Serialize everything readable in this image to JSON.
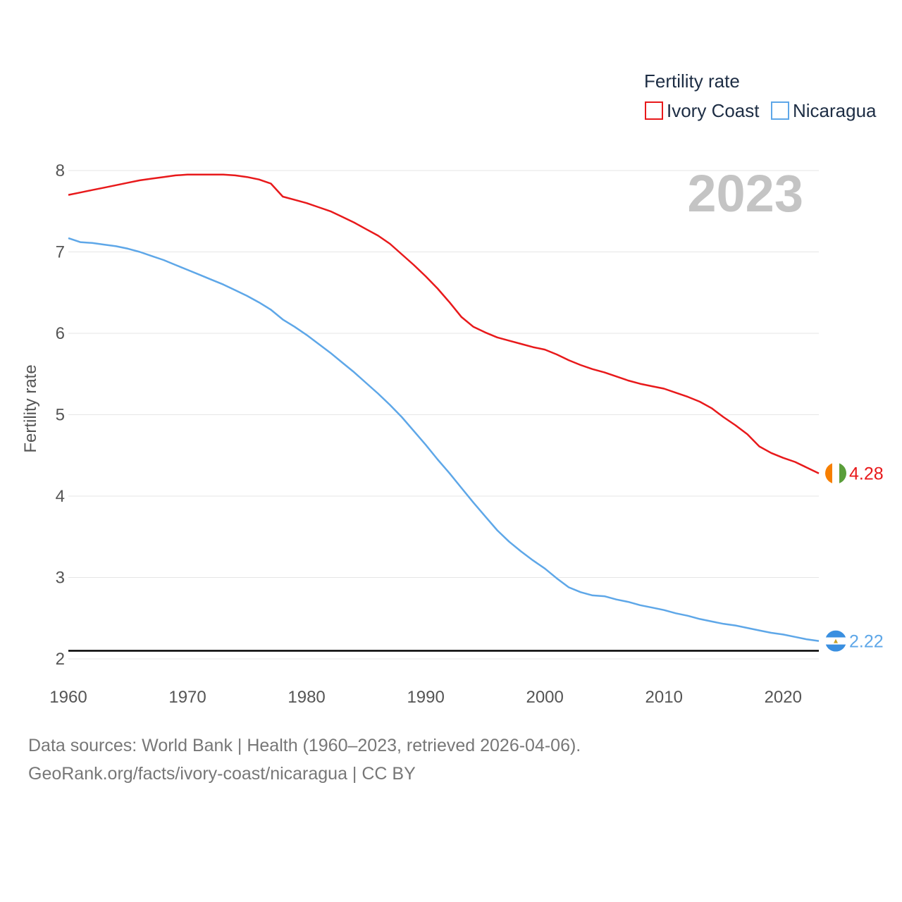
{
  "chart_data": {
    "type": "line",
    "title": "Fertility rate",
    "year_label": "2023",
    "xlabel": "",
    "ylabel": "Fertility rate",
    "xlim": [
      1960,
      2023
    ],
    "ylim": [
      2,
      8
    ],
    "x_ticks": [
      1960,
      1970,
      1980,
      1990,
      2000,
      2010,
      2020
    ],
    "y_ticks": [
      2,
      3,
      4,
      5,
      6,
      7,
      8
    ],
    "reference_line": 2.1,
    "grid": true,
    "legend_position": "top-right",
    "x": [
      1960,
      1961,
      1962,
      1963,
      1964,
      1965,
      1966,
      1967,
      1968,
      1969,
      1970,
      1971,
      1972,
      1973,
      1974,
      1975,
      1976,
      1977,
      1978,
      1979,
      1980,
      1981,
      1982,
      1983,
      1984,
      1985,
      1986,
      1987,
      1988,
      1989,
      1990,
      1991,
      1992,
      1993,
      1994,
      1995,
      1996,
      1997,
      1998,
      1999,
      2000,
      2001,
      2002,
      2003,
      2004,
      2005,
      2006,
      2007,
      2008,
      2009,
      2010,
      2011,
      2012,
      2013,
      2014,
      2015,
      2016,
      2017,
      2018,
      2019,
      2020,
      2021,
      2022,
      2023
    ],
    "series": [
      {
        "name": "Ivory Coast",
        "color": "#e8191b",
        "end_label": "4.28",
        "flag": "ivory-coast-flag",
        "values": [
          7.7,
          7.73,
          7.76,
          7.79,
          7.82,
          7.85,
          7.88,
          7.9,
          7.92,
          7.94,
          7.95,
          7.95,
          7.95,
          7.95,
          7.94,
          7.92,
          7.89,
          7.84,
          7.68,
          7.64,
          7.6,
          7.55,
          7.5,
          7.43,
          7.36,
          7.28,
          7.2,
          7.1,
          6.97,
          6.84,
          6.7,
          6.55,
          6.38,
          6.2,
          6.08,
          6.01,
          5.95,
          5.91,
          5.87,
          5.83,
          5.8,
          5.74,
          5.67,
          5.61,
          5.56,
          5.52,
          5.47,
          5.42,
          5.38,
          5.35,
          5.32,
          5.27,
          5.22,
          5.16,
          5.08,
          4.97,
          4.87,
          4.76,
          4.61,
          4.53,
          4.47,
          4.42,
          4.35,
          4.28
        ]
      },
      {
        "name": "Nicaragua",
        "color": "#5ea7e8",
        "end_label": "2.22",
        "flag": "nicaragua-flag",
        "values": [
          7.17,
          7.12,
          7.11,
          7.09,
          7.07,
          7.04,
          7.0,
          6.95,
          6.9,
          6.84,
          6.78,
          6.72,
          6.66,
          6.6,
          6.53,
          6.46,
          6.38,
          6.29,
          6.17,
          6.08,
          5.98,
          5.87,
          5.76,
          5.64,
          5.52,
          5.39,
          5.26,
          5.12,
          4.97,
          4.8,
          4.63,
          4.45,
          4.28,
          4.1,
          3.92,
          3.75,
          3.58,
          3.44,
          3.32,
          3.21,
          3.11,
          2.99,
          2.88,
          2.82,
          2.78,
          2.77,
          2.73,
          2.7,
          2.66,
          2.63,
          2.6,
          2.56,
          2.53,
          2.49,
          2.46,
          2.43,
          2.41,
          2.38,
          2.35,
          2.32,
          2.3,
          2.27,
          2.24,
          2.22
        ]
      }
    ]
  },
  "footer": {
    "sources": "Data sources: World Bank | Health (1960–2023, retrieved 2026-04-06).",
    "url": "GeoRank.org/facts/ivory-coast/nicaragua | CC BY"
  }
}
